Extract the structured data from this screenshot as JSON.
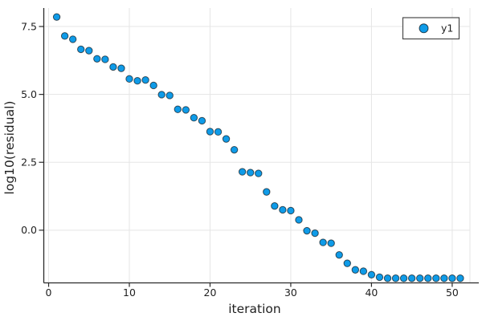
{
  "chart_data": {
    "type": "scatter",
    "xlabel": "iteration",
    "ylabel": "log10(residual)",
    "xlim": [
      -0.6,
      52.2
    ],
    "ylim": [
      -1.94,
      8.18
    ],
    "x_ticks": [
      0,
      10,
      20,
      30,
      40,
      50
    ],
    "x_tick_labels": [
      "0",
      "10",
      "20",
      "30",
      "40",
      "50"
    ],
    "y_ticks": [
      0.0,
      2.5,
      5.0,
      7.5
    ],
    "y_tick_labels": [
      "0.0",
      "2.5",
      "5.0",
      "7.5"
    ],
    "grid": true,
    "legend": {
      "position": "top-right",
      "entries": [
        {
          "label": "y1",
          "marker": "circle"
        }
      ]
    },
    "series": [
      {
        "name": "y1",
        "x": [
          1,
          2,
          3,
          4,
          5,
          6,
          7,
          8,
          9,
          10,
          11,
          12,
          13,
          14,
          15,
          16,
          17,
          18,
          19,
          20,
          21,
          22,
          23,
          24,
          25,
          26,
          27,
          28,
          29,
          30,
          31,
          32,
          33,
          34,
          35,
          36,
          37,
          38,
          39,
          40,
          41,
          42,
          43,
          44,
          45,
          46,
          47,
          48,
          49,
          50,
          51
        ],
        "y": [
          7.85,
          7.15,
          7.03,
          6.66,
          6.61,
          6.31,
          6.29,
          6.01,
          5.96,
          5.57,
          5.5,
          5.53,
          5.33,
          4.99,
          4.96,
          4.45,
          4.43,
          4.14,
          4.03,
          3.63,
          3.62,
          3.36,
          2.96,
          2.15,
          2.12,
          2.09,
          1.41,
          0.89,
          0.75,
          0.72,
          0.38,
          -0.02,
          -0.11,
          -0.45,
          -0.48,
          -0.91,
          -1.22,
          -1.46,
          -1.51,
          -1.64,
          -1.73,
          -1.77,
          -1.77,
          -1.77,
          -1.77,
          -1.77,
          -1.77,
          -1.77,
          -1.77,
          -1.77,
          -1.77
        ]
      }
    ],
    "colors": {
      "marker_fill": "#0f9be8",
      "marker_stroke": "rgba(0,0,0,0.62)",
      "grid": "#e5e5e5",
      "axis": "#2a2a2a",
      "text": "#1f1f1f",
      "legend_border": "#4a4a4a",
      "background": "#ffffff"
    }
  }
}
